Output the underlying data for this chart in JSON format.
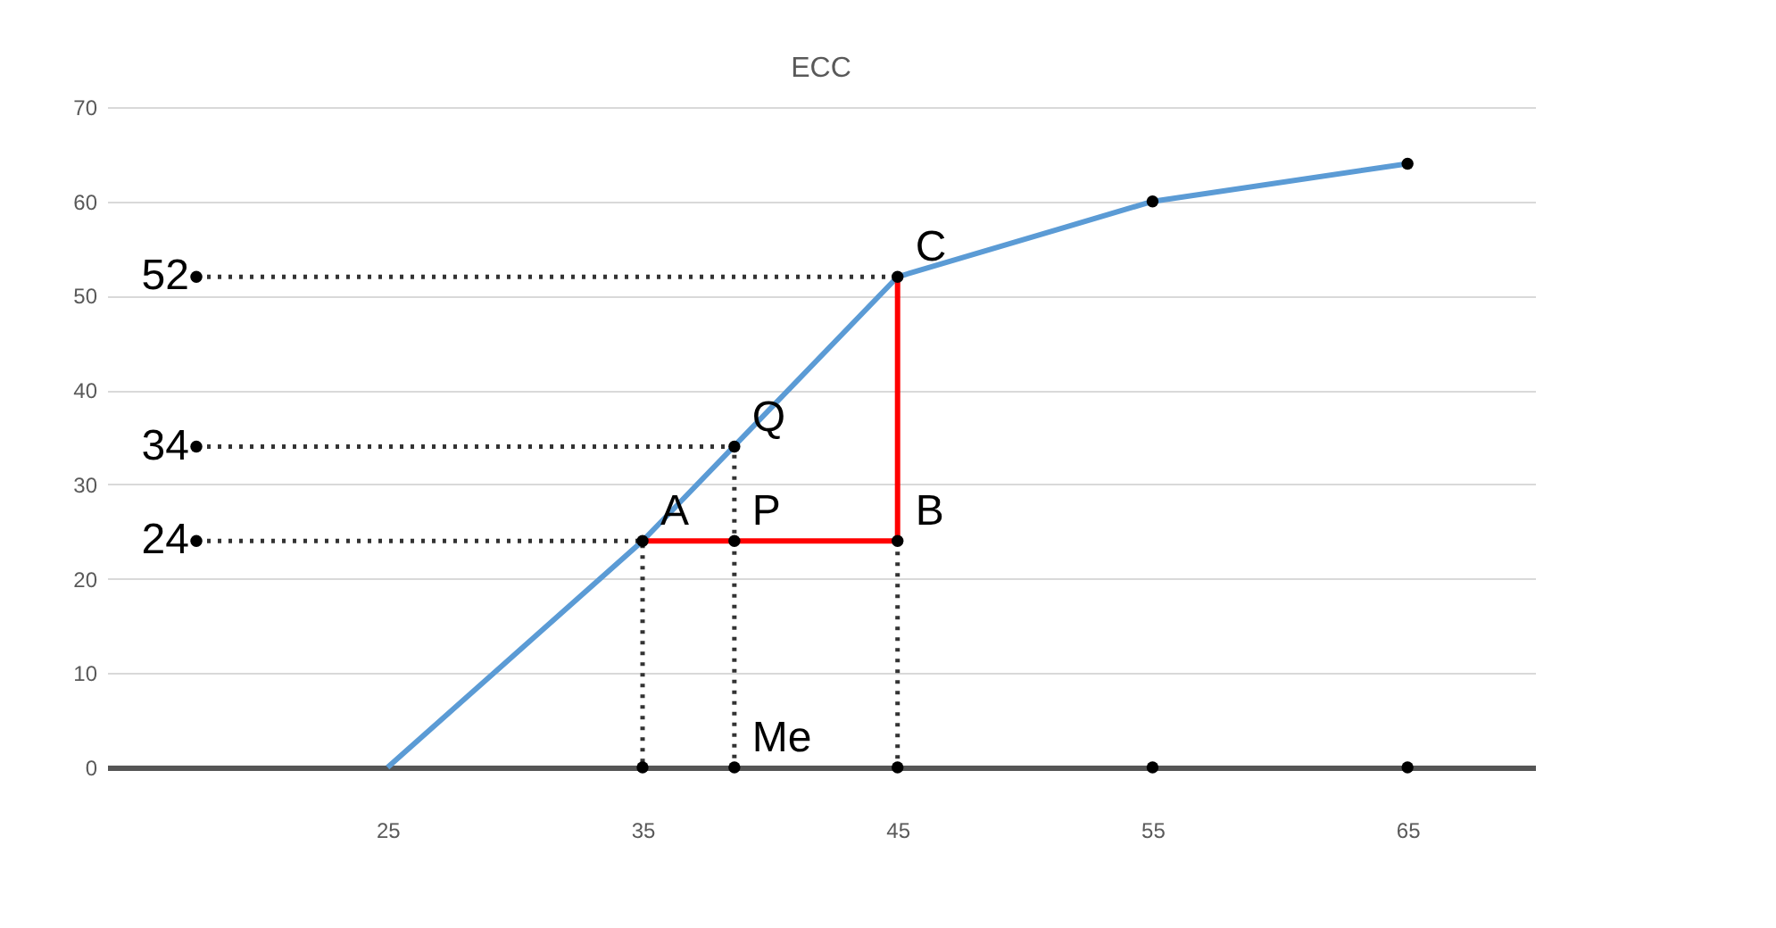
{
  "chart_data": {
    "type": "line",
    "title": "ECC",
    "xlim": [
      14,
      70
    ],
    "xticks": [
      25,
      35,
      45,
      55,
      65
    ],
    "ylim": [
      0,
      70
    ],
    "yticks": [
      0,
      10,
      20,
      30,
      40,
      50,
      60,
      70
    ],
    "grid": "y",
    "series": [
      {
        "color": "#5b9bd5",
        "x": [
          25,
          35,
          45,
          55,
          65
        ],
        "values": [
          0,
          24,
          52,
          60,
          64
        ]
      },
      {
        "type": "line",
        "color": "#ff0000",
        "x": [
          35,
          45,
          45
        ],
        "values": [
          24,
          24,
          52
        ]
      },
      {
        "type": "line",
        "color": "#333333",
        "line_style": "dotted",
        "x": [
          17.5,
          45
        ],
        "values": [
          52,
          52
        ]
      },
      {
        "type": "line",
        "color": "#333333",
        "line_style": "dotted",
        "x": [
          17.5,
          38.6,
          38.6
        ],
        "values": [
          34,
          34,
          0
        ]
      },
      {
        "type": "line",
        "color": "#333333",
        "line_style": "dotted",
        "x": [
          17.5,
          35,
          35
        ],
        "values": [
          24,
          24,
          0
        ]
      },
      {
        "type": "line",
        "color": "#333333",
        "line_style": "dotted",
        "x": [
          45,
          45
        ],
        "values": [
          24,
          0
        ]
      },
      {
        "type": "scatter",
        "color": "#000000",
        "marker": "circle",
        "x": [
          17.5,
          17.5,
          17.5,
          35,
          38.6,
          38.6,
          45,
          45,
          55,
          65,
          35,
          38.6,
          45,
          55,
          65
        ],
        "values": [
          52,
          34,
          24,
          24,
          24,
          34,
          52,
          24,
          60,
          64,
          0,
          0,
          0,
          0,
          0
        ]
      }
    ],
    "annotations": [
      {
        "text": "A",
        "x": 35,
        "y": 24
      },
      {
        "text": "B",
        "x": 45,
        "y": 24
      },
      {
        "text": "C",
        "x": 45,
        "y": 52
      },
      {
        "text": "P",
        "x": 38.6,
        "y": 24
      },
      {
        "text": "Q",
        "x": 38.6,
        "y": 34
      },
      {
        "text": "Me",
        "x": 38.6,
        "y": 0
      },
      {
        "text": "52",
        "x": 17.5,
        "y": 52
      },
      {
        "text": "34",
        "x": 17.5,
        "y": 34
      },
      {
        "text": "24",
        "x": 17.5,
        "y": 24
      }
    ]
  }
}
